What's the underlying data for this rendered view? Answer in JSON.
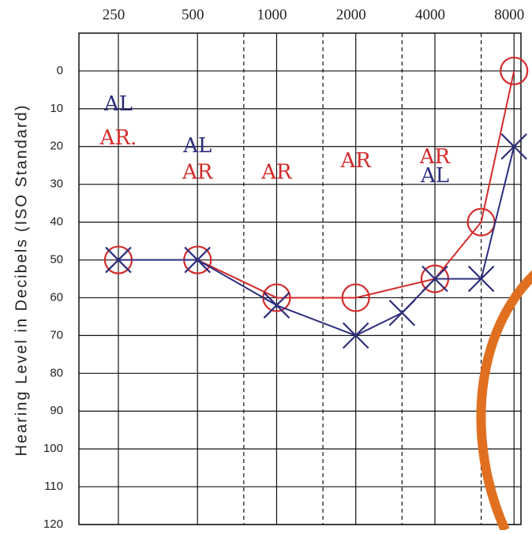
{
  "chart_data": {
    "type": "line",
    "y_label": "Hearing Level in Decibels (ISO Standard)",
    "x_scale": "log",
    "xlim": [
      177,
      8500
    ],
    "xticks": [
      250,
      500,
      1000,
      2000,
      4000,
      8000
    ],
    "x_minor_ticks": [
      750,
      1500,
      3000,
      6000
    ],
    "ylim": [
      -10,
      120
    ],
    "y_inverted": true,
    "yticks": [
      0,
      10,
      20,
      30,
      40,
      50,
      60,
      70,
      80,
      90,
      100,
      110,
      120
    ],
    "grid": true,
    "series": [
      {
        "color": "#d42a2a",
        "marker": "circle",
        "x": [
          250,
          500,
          1000,
          2000,
          4000,
          6000,
          8000
        ],
        "values": [
          50,
          50,
          60,
          60,
          55,
          40,
          0
        ]
      },
      {
        "color": "#2d2d7d",
        "marker": "x",
        "x": [
          250,
          500,
          1000,
          2000,
          3000,
          4000,
          6000,
          8000
        ],
        "values": [
          50,
          50,
          62,
          70,
          64,
          55,
          55,
          20
        ]
      }
    ],
    "annotations": [
      {
        "text": "AL",
        "x": 250,
        "y": 9,
        "color": "#2d2d7d"
      },
      {
        "text": "AR.",
        "x": 250,
        "y": 18,
        "color": "#d42a2a"
      },
      {
        "text": "AL",
        "x": 500,
        "y": 20,
        "color": "#2d2d7d"
      },
      {
        "text": "AR",
        "x": 500,
        "y": 27,
        "color": "#d42a2a"
      },
      {
        "text": "AR",
        "x": 1000,
        "y": 27,
        "color": "#d42a2a"
      },
      {
        "text": "AR",
        "x": 2000,
        "y": 24,
        "color": "#d42a2a"
      },
      {
        "text": "AR",
        "x": 4000,
        "y": 23,
        "color": "#d42a2a"
      },
      {
        "text": "AL",
        "x": 4000,
        "y": 28,
        "color": "#2d2d7d"
      }
    ]
  }
}
